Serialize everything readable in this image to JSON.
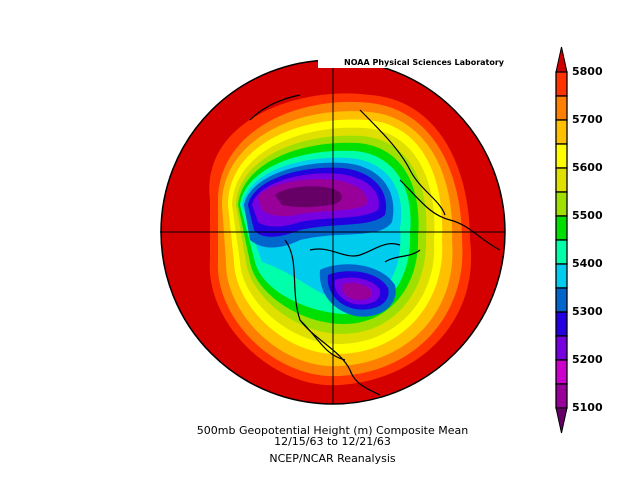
{
  "credit": "NOAA Physical Sciences Laboratory",
  "title": "500mb Geopotential Height (m) Composite Mean",
  "date_range": "12/15/63  to 12/21/63",
  "source": "NCEP/NCAR Reanalysis",
  "colorbar": {
    "labels": [
      "5800",
      "5700",
      "5600",
      "5500",
      "5400",
      "5300",
      "5200",
      "5100"
    ],
    "levels_top_to_bottom": [
      5800,
      5750,
      5700,
      5650,
      5600,
      5550,
      5500,
      5450,
      5400,
      5350,
      5300,
      5250,
      5200,
      5150,
      5100
    ],
    "colors_top_to_bottom": [
      "#ff3300",
      "#ff8000",
      "#ffc000",
      "#ffff00",
      "#e0e000",
      "#a0e000",
      "#00e000",
      "#00ffaa",
      "#00ccee",
      "#0066cc",
      "#2200e0",
      "#7700e0",
      "#cc00cc",
      "#990099"
    ],
    "above_color": "#cc0000",
    "below_color": "#660066"
  },
  "map": {
    "projection": "polar stereographic, northern hemisphere",
    "field_units": "m"
  }
}
